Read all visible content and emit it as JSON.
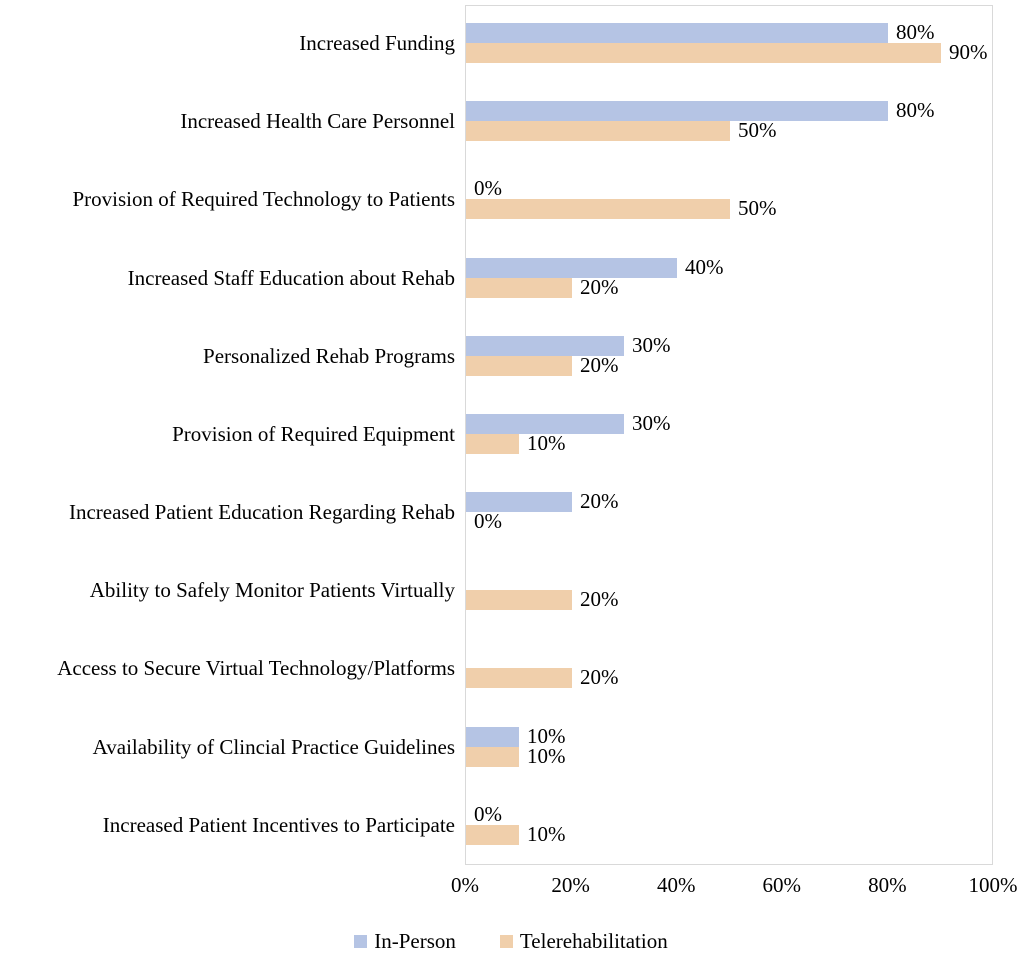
{
  "figure": {
    "background": "#ffffff",
    "plot_border_color": "#d9d9d9",
    "text_color": "#000000"
  },
  "chart_data": {
    "type": "bar",
    "orientation": "horizontal",
    "title": "",
    "xlabel": "",
    "ylabel": "",
    "xlim": [
      0,
      100
    ],
    "x_ticks": [
      "0%",
      "20%",
      "40%",
      "60%",
      "80%",
      "100%"
    ],
    "grid": false,
    "legend_position": "bottom",
    "categories": [
      "Increased Funding",
      "Increased Health Care Personnel",
      "Provision of Required Technology to Patients",
      "Increased Staff Education about Rehab",
      "Personalized Rehab Programs",
      "Provision of Required Equipment",
      "Increased Patient Education Regarding Rehab",
      "Ability to Safely Monitor Patients Virtually",
      "Access to Secure Virtual Technology/Platforms",
      "Availability of Clincial Practice Guidelines",
      "Increased Patient Incentives to Participate"
    ],
    "series": [
      {
        "name": "In-Person",
        "color": "#b5c4e4",
        "values": [
          80,
          80,
          0,
          40,
          30,
          30,
          20,
          null,
          null,
          10,
          0
        ],
        "labels": [
          "80%",
          "80%",
          "0%",
          "40%",
          "30%",
          "30%",
          "20%",
          "",
          "",
          "10%",
          "0%"
        ]
      },
      {
        "name": "Telerehabilitation",
        "color": "#f0cfab",
        "values": [
          90,
          50,
          50,
          20,
          20,
          10,
          0,
          20,
          20,
          10,
          10
        ],
        "labels": [
          "90%",
          "50%",
          "50%",
          "20%",
          "20%",
          "10%",
          "0%",
          "20%",
          "20%",
          "10%",
          "10%"
        ]
      }
    ]
  }
}
